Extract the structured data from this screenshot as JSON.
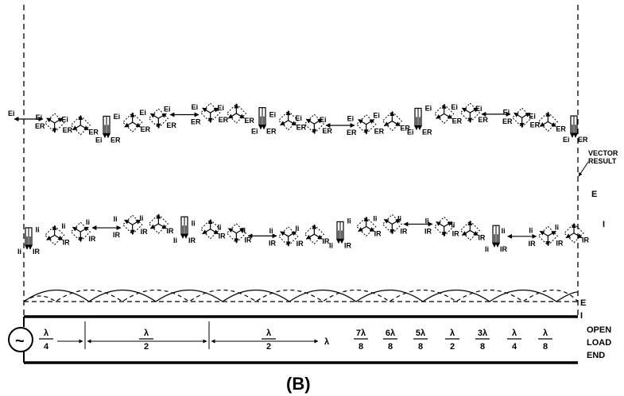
{
  "figure_caption": "(B)",
  "vector_result_label": {
    "line1": "VECTOR",
    "line2": "RESULT"
  },
  "wave_labels": {
    "voltage": "E",
    "current": "I"
  },
  "load_label": {
    "line1": "OPEN",
    "line2": "LOAD",
    "line3": "END"
  },
  "generator_symbol": "~",
  "lambda_symbol": "λ",
  "vector_labels": {
    "incident_voltage": "Ei",
    "reflected_voltage": "ER",
    "incident_current": "Ii",
    "reflected_current": "IR"
  },
  "distance_marks": [
    {
      "num": "λ",
      "den": "4"
    },
    {
      "num": "λ",
      "den": "2"
    },
    {
      "num": "λ",
      "den": "2"
    }
  ],
  "fraction_marks": [
    {
      "num": "7λ",
      "den": "8"
    },
    {
      "num": "6λ",
      "den": "8"
    },
    {
      "num": "5λ",
      "den": "8"
    },
    {
      "num": "λ",
      "den": "2"
    },
    {
      "num": "3λ",
      "den": "8"
    },
    {
      "num": "λ",
      "den": "4"
    },
    {
      "num": "λ",
      "den": "8"
    }
  ],
  "colors": {
    "ink": "#000000",
    "paper": "#ffffff"
  }
}
